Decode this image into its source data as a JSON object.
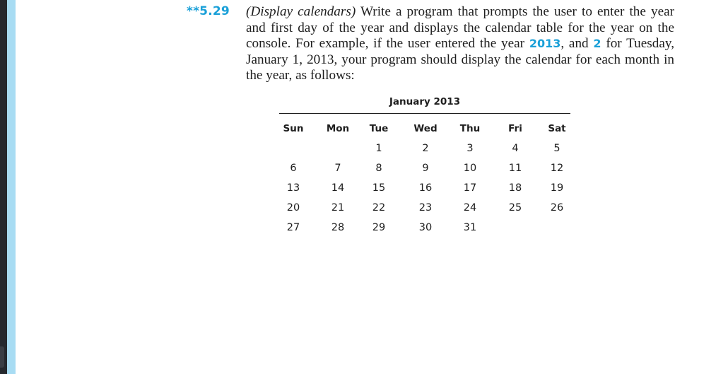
{
  "exercise": {
    "number": "**5.29",
    "title": "(Display calendars)",
    "text_before": " Write a program that prompts the user to enter the year and first day of the year and displays the calendar table for the year on the console. For example, if the user entered the year ",
    "value_year": "2013",
    "text_middle": ", and ",
    "value_day": "2",
    "text_after": " for Tuesday, January 1, 2013, your program should display the calendar for each month in the year, as follows:"
  },
  "calendar": {
    "title": "January 2013",
    "headers": [
      "Sun",
      "Mon",
      "Tue",
      "Wed",
      "Thu",
      "Fri",
      "Sat"
    ],
    "weeks": [
      [
        "",
        "",
        "1",
        "2",
        "3",
        "4",
        "5"
      ],
      [
        "6",
        "7",
        "8",
        "9",
        "10",
        "11",
        "12"
      ],
      [
        "13",
        "14",
        "15",
        "16",
        "17",
        "18",
        "19"
      ],
      [
        "20",
        "21",
        "22",
        "23",
        "24",
        "25",
        "26"
      ],
      [
        "27",
        "28",
        "29",
        "30",
        "31",
        "",
        ""
      ]
    ]
  },
  "colors": {
    "accent": "#1aa0d8",
    "text": "#1e1e1e",
    "sidebar_blue": "#a8dcf3",
    "sidebar_dark": "#25282e"
  }
}
